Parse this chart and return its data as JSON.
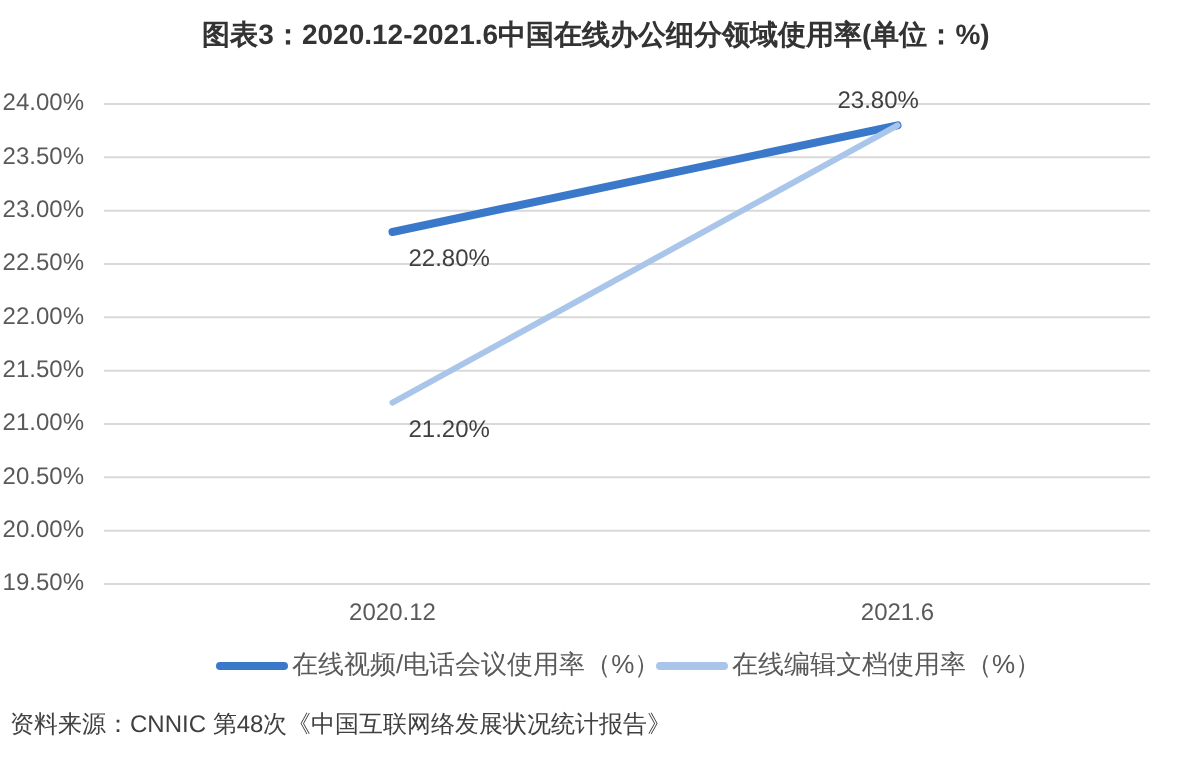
{
  "chart_data": {
    "type": "line",
    "title": "图表3：2020.12-2021.6中国在线办公细分领域使用率(单位：%)",
    "categories": [
      "2020.12",
      "2021.6"
    ],
    "series": [
      {
        "name": "在线视频/电话会议使用率（%）",
        "color": "#3a78c9",
        "values": [
          22.8,
          23.8
        ],
        "value_labels": [
          "22.80%",
          null
        ]
      },
      {
        "name": "在线编辑文档使用率（%）",
        "color": "#a9c6ea",
        "values": [
          21.2,
          23.8
        ],
        "value_labels": [
          "21.20%",
          "23.80%"
        ]
      }
    ],
    "ylim": [
      19.5,
      24.0
    ],
    "yticks": [
      {
        "value": 19.5,
        "label": "19.50%"
      },
      {
        "value": 20.0,
        "label": "20.00%"
      },
      {
        "value": 20.5,
        "label": "20.50%"
      },
      {
        "value": 21.0,
        "label": "21.00%"
      },
      {
        "value": 21.5,
        "label": "21.50%"
      },
      {
        "value": 22.0,
        "label": "22.00%"
      },
      {
        "value": 22.5,
        "label": "22.50%"
      },
      {
        "value": 23.0,
        "label": "23.00%"
      },
      {
        "value": 23.5,
        "label": "23.50%"
      },
      {
        "value": 24.0,
        "label": "24.00%"
      }
    ],
    "grid": "y",
    "legend": "bottom",
    "marker": "none",
    "annotations": [
      "资料来源：CNNIC 第48次《中国互联网络发展状况统计报告》"
    ]
  }
}
